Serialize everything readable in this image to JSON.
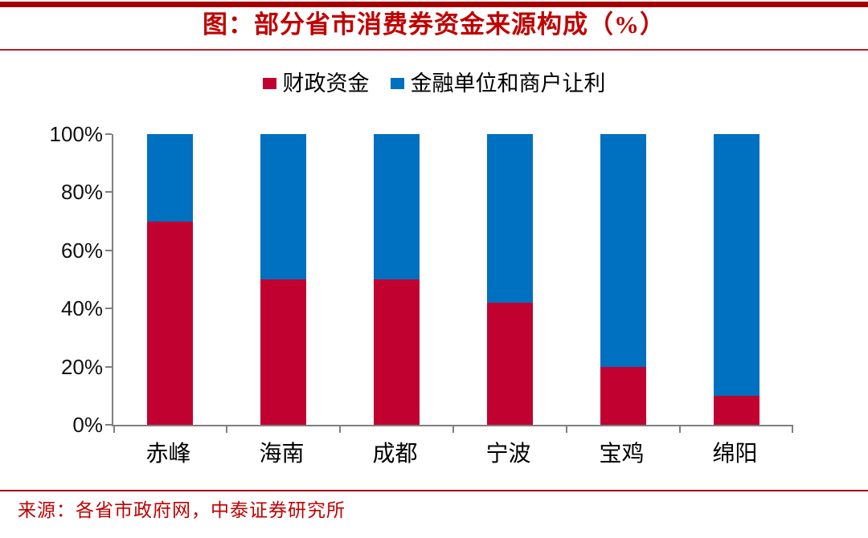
{
  "title": "图：部分省市消费券资金来源构成（%）",
  "source_note": "来源：各省市政府网，中泰证券研究所",
  "colors": {
    "title_red": "#C00000",
    "thick_rule": "#A40000",
    "thin_rule": "#B22222",
    "axis_gray": "#7F7F7F",
    "fiscal_red": "#C10230",
    "financial_blue": "#0070C0"
  },
  "legend": [
    {
      "label": "财政资金",
      "color": "#C10230"
    },
    {
      "label": "金融单位和商户让利",
      "color": "#0070C0"
    }
  ],
  "chart_data": {
    "type": "bar",
    "stacked": true,
    "title": "图：部分省市消费券资金来源构成（%）",
    "categories": [
      "赤峰",
      "海南",
      "成都",
      "宁波",
      "宝鸡",
      "绵阳"
    ],
    "series": [
      {
        "name": "财政资金",
        "color": "#C10230",
        "values": [
          70,
          50,
          50,
          42,
          20,
          10
        ]
      },
      {
        "name": "金融单位和商户让利",
        "color": "#0070C0",
        "values": [
          30,
          50,
          50,
          58,
          80,
          90
        ]
      }
    ],
    "xlabel": "",
    "ylabel": "",
    "ylim": [
      0,
      100
    ],
    "yticks": [
      "0%",
      "20%",
      "40%",
      "60%",
      "80%",
      "100%"
    ],
    "grid": false,
    "legend_position": "top"
  }
}
